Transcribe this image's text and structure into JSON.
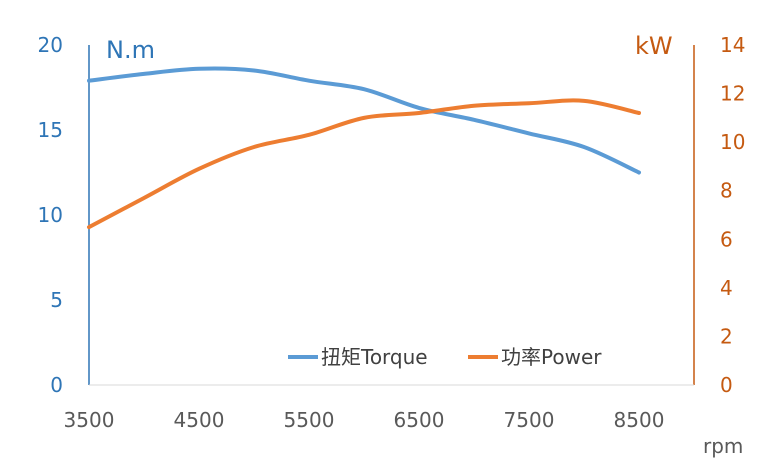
{
  "chart_data": {
    "type": "line",
    "x_unit_label": "rpm",
    "x_ticks": [
      "3500",
      "4500",
      "5500",
      "6500",
      "7500",
      "8500"
    ],
    "xlim": [
      3500,
      9000
    ],
    "left_axis": {
      "unit_label": "N.m",
      "ylim": [
        0,
        20
      ],
      "ticks": [
        "0",
        "5",
        "10",
        "15",
        "20"
      ],
      "color": "#2E75B6"
    },
    "right_axis": {
      "unit_label": "kW",
      "ylim": [
        0,
        14
      ],
      "ticks": [
        "0",
        "2",
        "4",
        "6",
        "8",
        "10",
        "12",
        "14"
      ],
      "color": "#C55A11"
    },
    "grid": false,
    "legend_position": "bottom-right",
    "series": [
      {
        "name": "扭矩Torque",
        "axis": "left",
        "color": "#5B9BD5",
        "points": [
          [
            3500,
            17.9
          ],
          [
            4000,
            18.3
          ],
          [
            4500,
            18.6
          ],
          [
            5000,
            18.5
          ],
          [
            5500,
            17.9
          ],
          [
            6000,
            17.4
          ],
          [
            6500,
            16.3
          ],
          [
            7000,
            15.6
          ],
          [
            7500,
            14.8
          ],
          [
            8000,
            14.0
          ],
          [
            8500,
            12.5
          ]
        ]
      },
      {
        "name": "功率Power",
        "axis": "right",
        "color": "#ED7D31",
        "points": [
          [
            3500,
            6.5
          ],
          [
            4000,
            7.7
          ],
          [
            4500,
            8.9
          ],
          [
            5000,
            9.8
          ],
          [
            5500,
            10.3
          ],
          [
            6000,
            11.0
          ],
          [
            6500,
            11.2
          ],
          [
            7000,
            11.5
          ],
          [
            7500,
            11.6
          ],
          [
            8000,
            11.7
          ],
          [
            8500,
            11.2
          ]
        ]
      }
    ]
  }
}
